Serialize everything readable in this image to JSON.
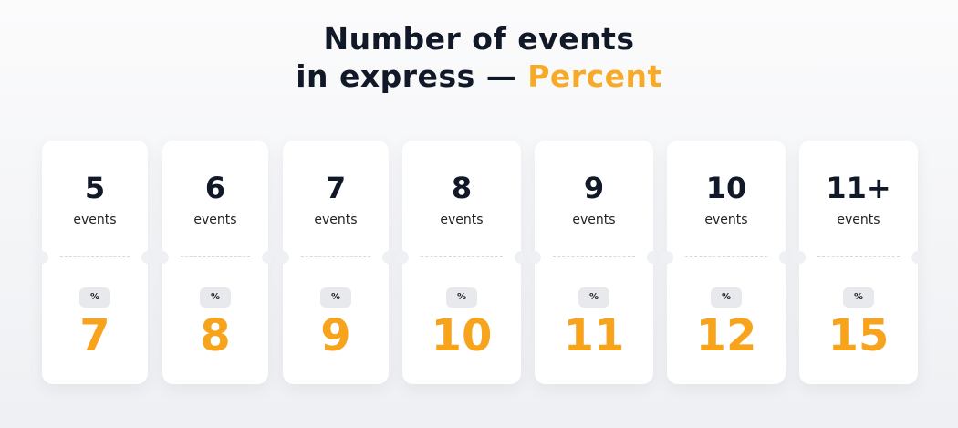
{
  "title": {
    "line1": "Number of events",
    "line2_prefix": "in express —",
    "line2_accent": "Percent"
  },
  "accent_color": "#f7a928",
  "cards": [
    {
      "events": "5",
      "label": "events",
      "unit": "%",
      "percent": "7"
    },
    {
      "events": "6",
      "label": "events",
      "unit": "%",
      "percent": "8"
    },
    {
      "events": "7",
      "label": "events",
      "unit": "%",
      "percent": "9"
    },
    {
      "events": "8",
      "label": "events",
      "unit": "%",
      "percent": "10"
    },
    {
      "events": "9",
      "label": "events",
      "unit": "%",
      "percent": "11"
    },
    {
      "events": "10",
      "label": "events",
      "unit": "%",
      "percent": "12"
    },
    {
      "events": "11+",
      "label": "events",
      "unit": "%",
      "percent": "15"
    }
  ]
}
